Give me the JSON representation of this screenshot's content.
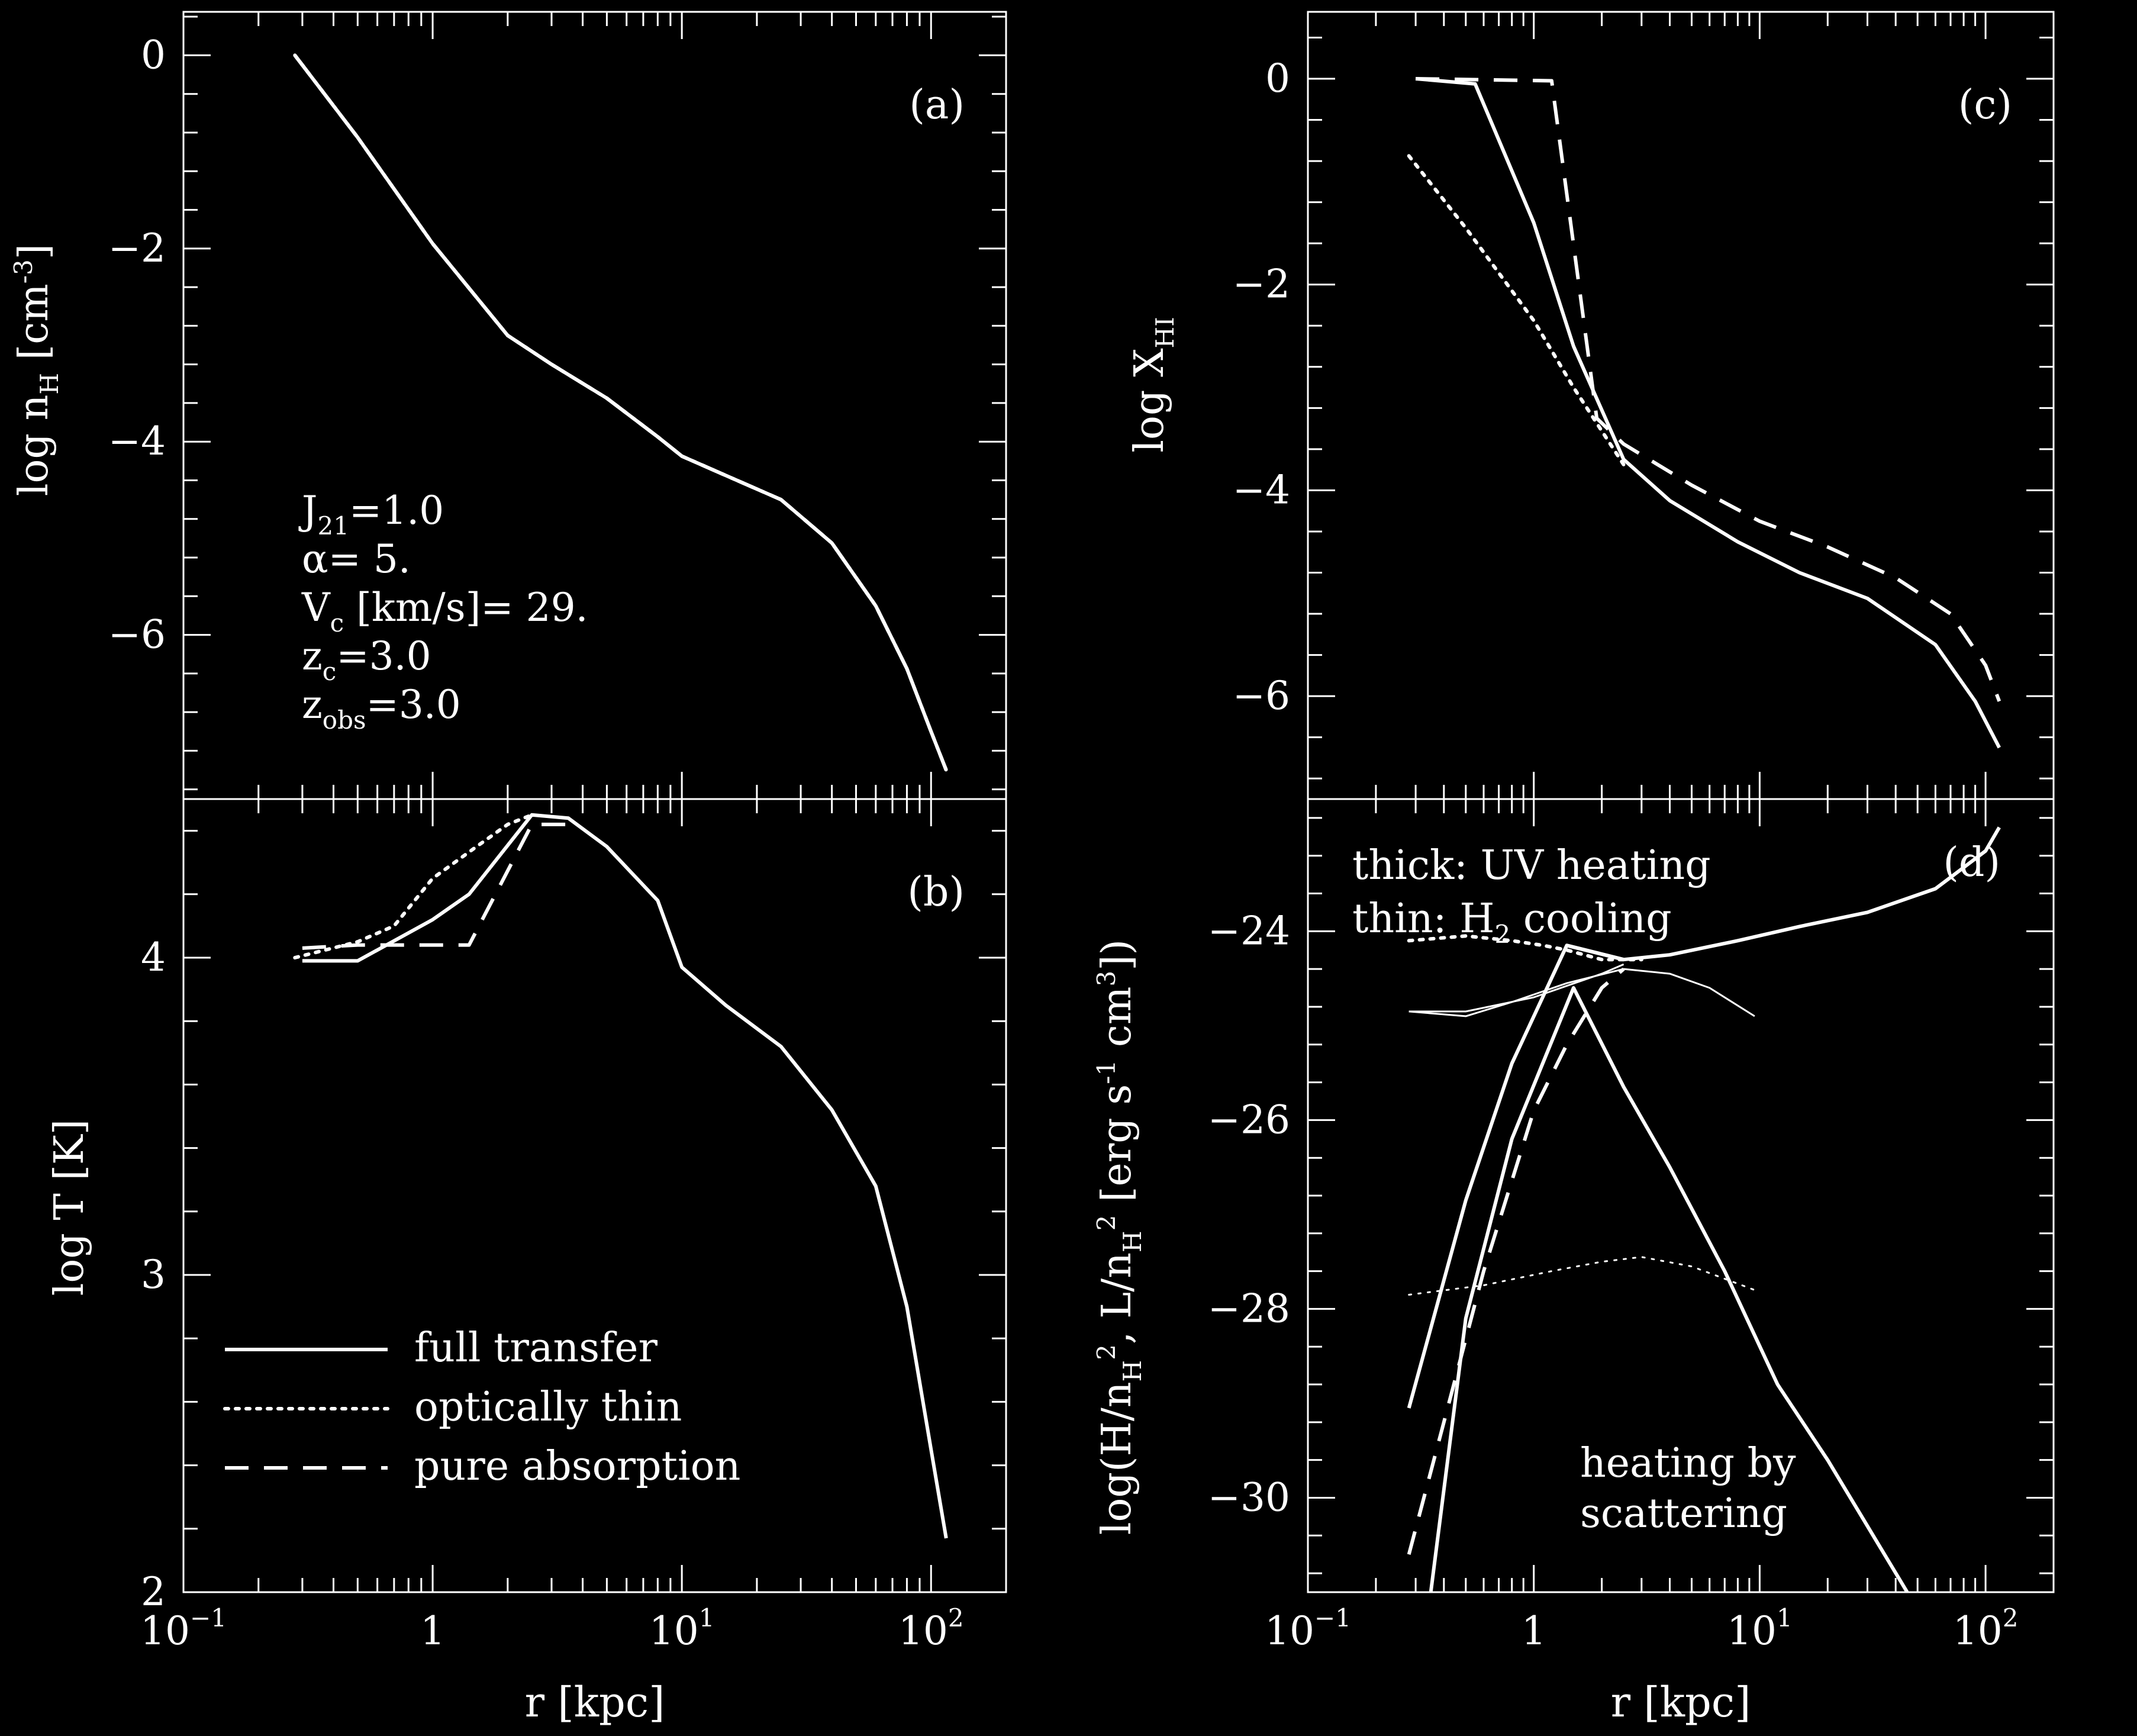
{
  "chart_data": [
    {
      "id": "a",
      "type": "line",
      "panel_label": "(a)",
      "xlabel": "",
      "ylabel": "log n",
      "ylabel_sub": "H",
      "ylabel_unit": " [cm",
      "ylabel_sup": "-3",
      "ylabel_close": "]",
      "xscale": "log",
      "xlim": [
        0.1,
        200
      ],
      "ylim": [
        -7.7,
        0.45
      ],
      "yticks": [
        0,
        -2,
        -4,
        -6
      ],
      "ytick_labels": [
        "0",
        "−2",
        "−4",
        "−6"
      ],
      "annotations": [
        {
          "main": "J",
          "sub": "21",
          "rest": "=1.0"
        },
        {
          "main": "α= 5.",
          "sub": "",
          "rest": ""
        },
        {
          "main": "V",
          "sub": "c",
          "rest": " [km/s]= 29."
        },
        {
          "main": "z",
          "sub": "c",
          "rest": "=3.0"
        },
        {
          "main": "z",
          "sub": "obs",
          "rest": "=3.0"
        }
      ],
      "series": [
        {
          "style": "dashed",
          "x": [
            0.28,
            0.5,
            1,
            2,
            3,
            5,
            8,
            10,
            15,
            25,
            40,
            60,
            80,
            100,
            115
          ],
          "y": [
            0,
            -0.85,
            -1.95,
            -2.9,
            -3.2,
            -3.55,
            -3.95,
            -4.15,
            -4.35,
            -4.6,
            -5.05,
            -5.7,
            -6.35,
            -7.0,
            -7.4
          ]
        },
        {
          "style": "dotted",
          "x": [
            0.28,
            0.5,
            1,
            2,
            3,
            5,
            8,
            10,
            15,
            25,
            40,
            60,
            80,
            100,
            115
          ],
          "y": [
            0,
            -0.85,
            -1.95,
            -2.9,
            -3.2,
            -3.55,
            -3.95,
            -4.15,
            -4.35,
            -4.6,
            -5.05,
            -5.7,
            -6.35,
            -7.0,
            -7.4
          ]
        },
        {
          "style": "solid",
          "x": [
            0.28,
            0.5,
            1,
            2,
            3,
            5,
            8,
            10,
            15,
            25,
            40,
            60,
            80,
            100,
            115
          ],
          "y": [
            0,
            -0.85,
            -1.95,
            -2.9,
            -3.2,
            -3.55,
            -3.95,
            -4.15,
            -4.35,
            -4.6,
            -5.05,
            -5.7,
            -6.35,
            -7.0,
            -7.4
          ]
        }
      ]
    },
    {
      "id": "b",
      "type": "line",
      "panel_label": "(b)",
      "xlabel": "r [kpc]",
      "ylabel": "log T [K]",
      "xscale": "log",
      "xlim": [
        0.1,
        200
      ],
      "ylim": [
        2,
        4.5
      ],
      "yticks": [
        2,
        3,
        4
      ],
      "ytick_labels": [
        "2",
        "3",
        "4"
      ],
      "xticks": [
        0.1,
        1,
        10,
        100
      ],
      "xtick_labels": [
        {
          "base": "10",
          "exp": "−1"
        },
        {
          "base": "1",
          "exp": ""
        },
        {
          "base": "10",
          "exp": "1"
        },
        {
          "base": "10",
          "exp": "2"
        }
      ],
      "legend": [
        {
          "label": "full transfer",
          "style": "solid"
        },
        {
          "label": "optically thin",
          "style": "dotted"
        },
        {
          "label": "pure absorption",
          "style": "dashed"
        }
      ],
      "legend_position": "bottom-left",
      "series": [
        {
          "style": "solid",
          "x": [
            0.3,
            0.5,
            1,
            1.4,
            2.5,
            3.5,
            5,
            8,
            10,
            15,
            25,
            40,
            60,
            80,
            100,
            115
          ],
          "y": [
            3.99,
            3.99,
            4.12,
            4.2,
            4.45,
            4.44,
            4.35,
            4.18,
            3.97,
            3.85,
            3.72,
            3.52,
            3.28,
            2.9,
            2.45,
            2.17
          ]
        },
        {
          "style": "dotted",
          "x": [
            0.28,
            0.5,
            0.7,
            1,
            1.5,
            2,
            2.5
          ],
          "y": [
            4.0,
            4.05,
            4.1,
            4.25,
            4.35,
            4.42,
            4.45
          ]
        },
        {
          "style": "dashed",
          "x": [
            0.3,
            0.5,
            1,
            1.4,
            2.5,
            3.5
          ],
          "y": [
            4.03,
            4.04,
            4.04,
            4.04,
            4.42,
            4.42
          ]
        }
      ]
    },
    {
      "id": "c",
      "type": "line",
      "panel_label": "(c)",
      "xlabel": "",
      "ylabel": "log X",
      "ylabel_sub": "HI",
      "xscale": "log",
      "xlim": [
        0.1,
        200
      ],
      "ylim": [
        -7.0,
        0.65
      ],
      "yticks": [
        0,
        -2,
        -4,
        -6
      ],
      "ytick_labels": [
        "0",
        "−2",
        "−4",
        "−6"
      ],
      "series": [
        {
          "style": "solid",
          "x": [
            0.3,
            0.55,
            1,
            1.5,
            2.5,
            4,
            8,
            15,
            30,
            60,
            90,
            115
          ],
          "y": [
            0,
            -0.05,
            -1.4,
            -2.6,
            -3.7,
            -4.1,
            -4.5,
            -4.8,
            -5.05,
            -5.5,
            -6.05,
            -6.5
          ]
        },
        {
          "style": "dotted",
          "x": [
            0.28,
            0.5,
            1,
            1.5,
            2.5
          ],
          "y": [
            -0.75,
            -1.45,
            -2.35,
            -3.0,
            -3.75
          ]
        },
        {
          "style": "dashed",
          "x": [
            0.3,
            1.2,
            1.9,
            2.5,
            5,
            10,
            20,
            40,
            70,
            100,
            115
          ],
          "y": [
            0,
            -0.02,
            -3.3,
            -3.55,
            -3.95,
            -4.3,
            -4.55,
            -4.85,
            -5.2,
            -5.7,
            -6.05
          ]
        }
      ]
    },
    {
      "id": "d",
      "type": "line",
      "panel_label": "(d)",
      "xlabel": "r [kpc]",
      "ylabel": "log(H/n",
      "ylabel_full": [
        "log(H/n",
        "H",
        "2",
        ", L/n",
        "H",
        "2",
        " [erg s",
        "-1",
        " cm",
        "3",
        "])"
      ],
      "xscale": "log",
      "xlim": [
        0.1,
        200
      ],
      "ylim": [
        -31,
        -22.6
      ],
      "yticks": [
        -24,
        -26,
        -28,
        -30
      ],
      "ytick_labels": [
        "−24",
        "−26",
        "−28",
        "−30"
      ],
      "xticks": [
        0.1,
        1,
        10,
        100
      ],
      "xtick_labels": [
        {
          "base": "10",
          "exp": "−1"
        },
        {
          "base": "1",
          "exp": ""
        },
        {
          "base": "10",
          "exp": "1"
        },
        {
          "base": "10",
          "exp": "2"
        }
      ],
      "notes": [
        {
          "text_a": "thick: UV heating",
          "text_b": "(d)"
        },
        {
          "text_a": "thin: H",
          "sub": "2",
          "text_b": " cooling"
        }
      ],
      "annotation_bottom": [
        "heating by",
        "scattering"
      ],
      "series": [
        {
          "style": "dotted",
          "weight": "thick",
          "x": [
            0.28,
            0.5,
            0.8,
            1.1,
            1.4,
            2,
            3
          ],
          "y": [
            -24.1,
            -24.05,
            -24.1,
            -24.15,
            -24.2,
            -24.3,
            -24.3
          ]
        },
        {
          "style": "solid",
          "weight": "thick",
          "x": [
            1.4,
            2.5,
            4,
            8,
            15,
            30,
            60,
            100,
            115
          ],
          "y": [
            -24.15,
            -24.3,
            -24.25,
            -24.1,
            -23.95,
            -23.8,
            -23.55,
            -23.15,
            -22.9
          ]
        },
        {
          "style": "solid",
          "weight": "thick",
          "x": [
            0.28,
            0.5,
            0.8,
            1.4,
            2.5
          ],
          "y": [
            -29.05,
            -26.85,
            -25.4,
            -24.15,
            -24.3
          ]
        },
        {
          "style": "solid",
          "weight": "thick",
          "x": [
            0.35,
            0.5,
            0.8,
            1.5,
            2.5,
            4,
            7,
            12,
            20,
            30,
            45
          ],
          "y": [
            -31.0,
            -28.1,
            -26.2,
            -24.6,
            -25.65,
            -26.5,
            -27.6,
            -28.8,
            -29.6,
            -30.3,
            -31.0
          ]
        },
        {
          "style": "dashed",
          "weight": "thick",
          "x": [
            0.28,
            0.4,
            0.6,
            1,
            1.4,
            2,
            2.5
          ],
          "y": [
            -30.6,
            -29.2,
            -27.6,
            -25.9,
            -25.2,
            -24.6,
            -24.4
          ]
        },
        {
          "style": "solid",
          "weight": "thin",
          "x": [
            0.28,
            0.5,
            0.8,
            1.4,
            2.5,
            4,
            6,
            9.5
          ],
          "y": [
            -24.85,
            -24.9,
            -24.75,
            -24.55,
            -24.4,
            -24.45,
            -24.6,
            -24.9
          ]
        },
        {
          "style": "solid",
          "weight": "thin",
          "x": [
            0.28,
            0.5,
            1,
            2,
            2.5
          ],
          "y": [
            -24.85,
            -24.85,
            -24.7,
            -24.45,
            -24.35
          ]
        },
        {
          "style": "dotted",
          "weight": "thin",
          "x": [
            0.28,
            0.6,
            1.2,
            2,
            3,
            5,
            9.5
          ],
          "y": [
            -27.85,
            -27.75,
            -27.6,
            -27.5,
            -27.45,
            -27.55,
            -27.8
          ]
        }
      ]
    }
  ]
}
